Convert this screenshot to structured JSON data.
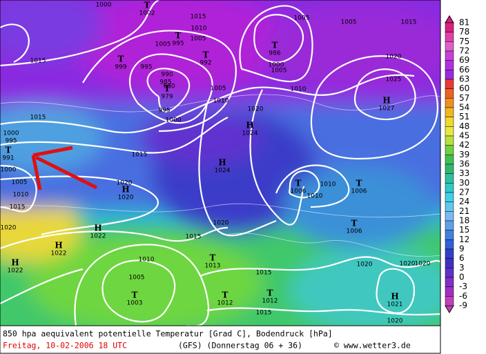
{
  "caption": {
    "title": "850 hpa aequivalent potentielle Temperatur [Grad C], Bodendruck [hPa]",
    "date": "Freitag, 10-02-2006  18 UTC",
    "model": "(GFS)  (Donnerstag 06 + 36)",
    "source": "© www.wetter3.de"
  },
  "color_scale": {
    "labels": [
      81,
      78,
      75,
      72,
      69,
      66,
      63,
      60,
      57,
      54,
      51,
      48,
      45,
      42,
      39,
      36,
      33,
      30,
      27,
      24,
      21,
      18,
      15,
      12,
      9,
      6,
      3,
      0,
      -3,
      -6,
      -9
    ],
    "colors": [
      "#d8207e",
      "#e040a8",
      "#e060c8",
      "#c840d8",
      "#b030e0",
      "#9a2ae0",
      "#e83838",
      "#f06020",
      "#f09020",
      "#f0b820",
      "#f0d830",
      "#e8e840",
      "#b8e040",
      "#70d040",
      "#40c050",
      "#30b870",
      "#30c0a0",
      "#30c8c8",
      "#40d0e8",
      "#60c8f0",
      "#80b8f0",
      "#60a0e8",
      "#4080e0",
      "#3060d8",
      "#3040c8",
      "#4030c0",
      "#6030c8",
      "#8030c8",
      "#a030c0",
      "#c040b8"
    ]
  },
  "centers": [
    {
      "symbol": "T",
      "pressure": "1002"
    },
    {
      "symbol": "T",
      "pressure": "995"
    },
    {
      "symbol": "T",
      "pressure": "999"
    },
    {
      "symbol": "T",
      "pressure": "992"
    },
    {
      "symbol": "T",
      "pressure": "986"
    },
    {
      "symbol": "T",
      "pressure": "979"
    },
    {
      "symbol": "H",
      "pressure": "1024"
    },
    {
      "symbol": "H",
      "pressure": "1024"
    },
    {
      "symbol": "H",
      "pressure": "1027"
    },
    {
      "symbol": "T",
      "pressure": "991"
    },
    {
      "symbol": "H",
      "pressure": "1020"
    },
    {
      "symbol": "H",
      "pressure": "1022"
    },
    {
      "symbol": "H",
      "pressure": "1022"
    },
    {
      "symbol": "H",
      "pressure": "1022"
    },
    {
      "symbol": "T",
      "pressure": "1006"
    },
    {
      "symbol": "T",
      "pressure": "1006"
    },
    {
      "symbol": "T",
      "pressure": "1006"
    },
    {
      "symbol": "T",
      "pressure": "1013"
    },
    {
      "symbol": "T",
      "pressure": "1003"
    },
    {
      "symbol": "T",
      "pressure": "1012"
    },
    {
      "symbol": "T",
      "pressure": "1012"
    },
    {
      "symbol": "H",
      "pressure": "1021"
    }
  ],
  "isobar_labels": [
    "1000",
    "1015",
    "1010",
    "1005",
    "1005",
    "1005",
    "1015",
    "1020",
    "1025",
    "1015",
    "1005",
    "995",
    "990",
    "985",
    "980",
    "995",
    "1000",
    "1005",
    "1010",
    "1015",
    "1020",
    "1000",
    "1005",
    "1010",
    "1015",
    "1010",
    "1010",
    "1020",
    "1020",
    "1015",
    "1020",
    "1015",
    "1010",
    "1005",
    "1015",
    "1015",
    "1020",
    "1020",
    "1020",
    "1020",
    "995",
    "1000",
    "1000",
    "1005",
    "1010"
  ]
}
